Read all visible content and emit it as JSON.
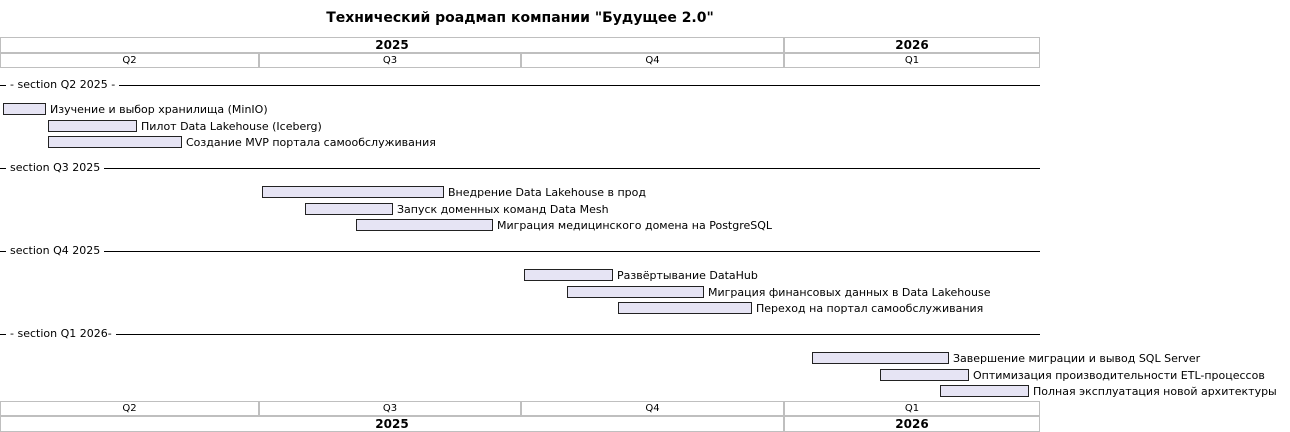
{
  "title": "Технический роадмап компании \"Будущее 2.0\"",
  "timeline": {
    "start": "2025-04-01",
    "end": "2026-04-01",
    "years": [
      {
        "label": "2025",
        "start": "2025-04-01",
        "end": "2026-01-01"
      },
      {
        "label": "2026",
        "start": "2026-01-01",
        "end": "2026-04-01"
      }
    ],
    "quarters": [
      {
        "label": "Q2",
        "start": "2025-04-01",
        "end": "2025-07-01"
      },
      {
        "label": "Q3",
        "start": "2025-07-01",
        "end": "2025-10-01"
      },
      {
        "label": "Q4",
        "start": "2025-10-01",
        "end": "2026-01-01"
      },
      {
        "label": "Q1",
        "start": "2026-01-01",
        "end": "2026-04-01"
      }
    ]
  },
  "sections": [
    {
      "label": "- section Q2 2025 -",
      "tasks": [
        {
          "label": "Изучение и выбор хранилища (MinIO)",
          "start": "2025-04-02",
          "end": "2025-04-17"
        },
        {
          "label": "Пилот Data Lakehouse (Iceberg)",
          "start": "2025-04-18",
          "end": "2025-05-19"
        },
        {
          "label": "Создание MVP портала самообслуживания",
          "start": "2025-04-18",
          "end": "2025-06-04"
        }
      ]
    },
    {
      "label": "section Q3 2025",
      "tasks": [
        {
          "label": "Внедрение Data Lakehouse в прод",
          "start": "2025-07-02",
          "end": "2025-09-04"
        },
        {
          "label": "Запуск доменных команд Data Mesh",
          "start": "2025-07-17",
          "end": "2025-08-17"
        },
        {
          "label": "Миграция медицинского домена на PostgreSQL",
          "start": "2025-08-04",
          "end": "2025-09-21"
        }
      ]
    },
    {
      "label": "section Q4 2025",
      "tasks": [
        {
          "label": "Развёртывание DataHub",
          "start": "2025-10-02",
          "end": "2025-11-02"
        },
        {
          "label": "Миграция финансовых данных в Data Lakehouse",
          "start": "2025-10-17",
          "end": "2025-12-04"
        },
        {
          "label": "Переход на портал самообслуживания",
          "start": "2025-11-04",
          "end": "2025-12-21"
        }
      ]
    },
    {
      "label": "- section Q1 2026-",
      "tasks": [
        {
          "label": "Завершение миграции и вывод SQL Server",
          "start": "2026-01-11",
          "end": "2026-02-28"
        },
        {
          "label": "Оптимизация производительности ETL-процессов",
          "start": "2026-02-04",
          "end": "2026-03-07"
        },
        {
          "label": "Полная эксплуатация новой архитектуры",
          "start": "2026-02-25",
          "end": "2026-03-28"
        }
      ]
    }
  ]
}
